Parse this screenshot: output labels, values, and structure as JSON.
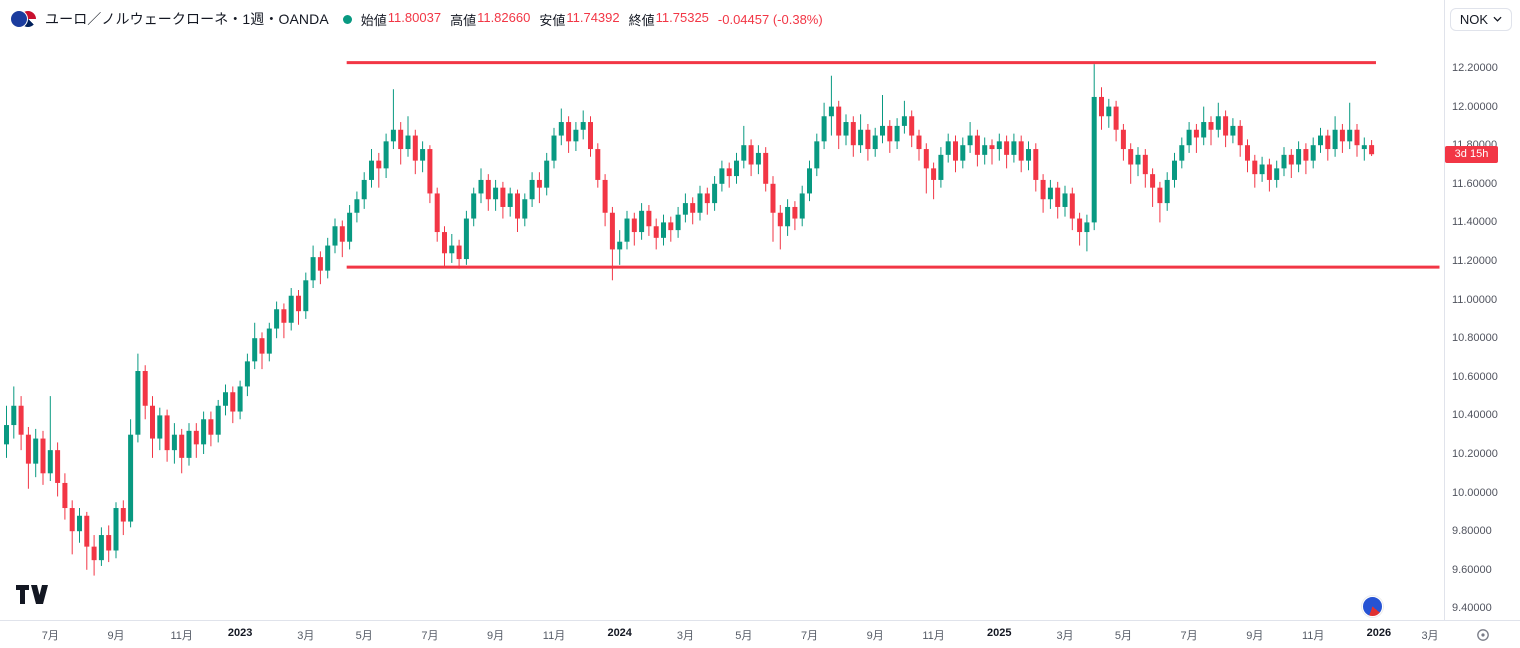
{
  "toolbar": {
    "symbol_title": "ユーロ／ノルウェークローネ・1週・OANDA",
    "ohlc": {
      "open_label": "始値",
      "open": "11.80037",
      "high_label": "高値",
      "high": "11.82660",
      "low_label": "安値",
      "low": "11.74392",
      "close_label": "終値",
      "close": "11.75325",
      "change": "-0.04457 (-0.38%)"
    },
    "currency_button": "NOK"
  },
  "icons": {
    "chevron_down": "chevron-down-icon",
    "tradingview_logo": "tradingview-logo",
    "symbol_marker": "symbol-marker-icon",
    "axis_settings": "axis-settings-icon"
  },
  "chart_data": {
    "type": "candlestick",
    "title": "ユーロ／ノルウェークローネ・1週・OANDA",
    "interval_note": "weekly candles, late May 2022 - late Dec 2025",
    "countdown_label": "3d 15h",
    "last_price": 11.75325,
    "ylim": [
      9.34,
      12.55
    ],
    "grid": false,
    "colors": {
      "up": "#089981",
      "down": "#f23645",
      "trend": "#f23645"
    },
    "y_axis_ticks": [
      "12.20000",
      "12.00000",
      "11.80000",
      "11.60000",
      "11.40000",
      "11.20000",
      "11.00000",
      "10.80000",
      "10.60000",
      "10.40000",
      "10.20000",
      "10.00000",
      "9.80000",
      "9.60000",
      "9.40000"
    ],
    "x_ticks": [
      {
        "i": 6,
        "label": "7月"
      },
      {
        "i": 15,
        "label": "9月"
      },
      {
        "i": 24,
        "label": "11月"
      },
      {
        "i": 32,
        "label": "2023",
        "year": true
      },
      {
        "i": 41,
        "label": "3月"
      },
      {
        "i": 49,
        "label": "5月"
      },
      {
        "i": 58,
        "label": "7月"
      },
      {
        "i": 67,
        "label": "9月"
      },
      {
        "i": 75,
        "label": "11月"
      },
      {
        "i": 84,
        "label": "2024",
        "year": true
      },
      {
        "i": 93,
        "label": "3月"
      },
      {
        "i": 101,
        "label": "5月"
      },
      {
        "i": 110,
        "label": "7月"
      },
      {
        "i": 119,
        "label": "9月"
      },
      {
        "i": 127,
        "label": "11月"
      },
      {
        "i": 136,
        "label": "2025",
        "year": true
      },
      {
        "i": 145,
        "label": "3月"
      },
      {
        "i": 153,
        "label": "5月"
      },
      {
        "i": 162,
        "label": "7月"
      },
      {
        "i": 171,
        "label": "9月"
      },
      {
        "i": 179,
        "label": "11月"
      },
      {
        "i": 188,
        "label": "2026",
        "year": true
      },
      {
        "i": 195,
        "label": "3月"
      }
    ],
    "trend_lines": [
      {
        "price": 12.228,
        "start_i": 46.6,
        "end_i": 187.6,
        "color": "#f23645",
        "width": 3
      },
      {
        "price": 11.168,
        "start_i": 46.6,
        "end_i": 196.3,
        "color": "#f23645",
        "width": 3
      }
    ],
    "candles": [
      [
        10.25,
        10.45,
        10.18,
        10.35
      ],
      [
        10.35,
        10.55,
        10.28,
        10.45
      ],
      [
        10.45,
        10.5,
        10.22,
        10.3
      ],
      [
        10.3,
        10.34,
        10.02,
        10.15
      ],
      [
        10.15,
        10.33,
        10.08,
        10.28
      ],
      [
        10.28,
        10.32,
        10.04,
        10.1
      ],
      [
        10.1,
        10.5,
        10.06,
        10.22
      ],
      [
        10.22,
        10.26,
        9.98,
        10.05
      ],
      [
        10.05,
        10.1,
        9.86,
        9.92
      ],
      [
        9.92,
        9.96,
        9.68,
        9.8
      ],
      [
        9.8,
        9.92,
        9.74,
        9.88
      ],
      [
        9.88,
        9.9,
        9.6,
        9.72
      ],
      [
        9.72,
        9.78,
        9.57,
        9.65
      ],
      [
        9.65,
        9.82,
        9.62,
        9.78
      ],
      [
        9.78,
        9.83,
        9.64,
        9.7
      ],
      [
        9.7,
        9.95,
        9.66,
        9.92
      ],
      [
        9.92,
        9.96,
        9.78,
        9.85
      ],
      [
        9.85,
        10.38,
        9.82,
        10.3
      ],
      [
        10.3,
        10.72,
        10.26,
        10.63
      ],
      [
        10.63,
        10.66,
        10.38,
        10.45
      ],
      [
        10.45,
        10.5,
        10.18,
        10.28
      ],
      [
        10.28,
        10.44,
        10.22,
        10.4
      ],
      [
        10.4,
        10.43,
        10.16,
        10.22
      ],
      [
        10.22,
        10.36,
        10.15,
        10.3
      ],
      [
        10.3,
        10.33,
        10.1,
        10.18
      ],
      [
        10.18,
        10.36,
        10.14,
        10.32
      ],
      [
        10.32,
        10.36,
        10.18,
        10.25
      ],
      [
        10.25,
        10.42,
        10.2,
        10.38
      ],
      [
        10.38,
        10.42,
        10.24,
        10.3
      ],
      [
        10.3,
        10.48,
        10.26,
        10.45
      ],
      [
        10.45,
        10.56,
        10.4,
        10.52
      ],
      [
        10.52,
        10.55,
        10.36,
        10.42
      ],
      [
        10.42,
        10.58,
        10.38,
        10.55
      ],
      [
        10.55,
        10.72,
        10.5,
        10.68
      ],
      [
        10.68,
        10.88,
        10.64,
        10.8
      ],
      [
        10.8,
        10.83,
        10.64,
        10.72
      ],
      [
        10.72,
        10.88,
        10.68,
        10.85
      ],
      [
        10.85,
        10.99,
        10.8,
        10.95
      ],
      [
        10.95,
        10.98,
        10.8,
        10.88
      ],
      [
        10.88,
        11.06,
        10.84,
        11.02
      ],
      [
        11.02,
        11.05,
        10.87,
        10.94
      ],
      [
        10.94,
        11.14,
        10.9,
        11.1
      ],
      [
        11.1,
        11.28,
        11.06,
        11.22
      ],
      [
        11.22,
        11.25,
        11.08,
        11.15
      ],
      [
        11.15,
        11.32,
        11.11,
        11.28
      ],
      [
        11.28,
        11.42,
        11.24,
        11.38
      ],
      [
        11.38,
        11.41,
        11.22,
        11.3
      ],
      [
        11.3,
        11.49,
        11.26,
        11.45
      ],
      [
        11.45,
        11.56,
        11.4,
        11.52
      ],
      [
        11.52,
        11.66,
        11.47,
        11.62
      ],
      [
        11.62,
        11.78,
        11.58,
        11.72
      ],
      [
        11.72,
        11.76,
        11.58,
        11.68
      ],
      [
        11.68,
        11.86,
        11.63,
        11.82
      ],
      [
        11.82,
        12.09,
        11.78,
        11.88
      ],
      [
        11.88,
        11.92,
        11.7,
        11.78
      ],
      [
        11.78,
        11.95,
        11.74,
        11.85
      ],
      [
        11.85,
        11.88,
        11.65,
        11.72
      ],
      [
        11.72,
        11.82,
        11.66,
        11.78
      ],
      [
        11.78,
        11.8,
        11.5,
        11.55
      ],
      [
        11.55,
        11.58,
        11.3,
        11.35
      ],
      [
        11.35,
        11.38,
        11.17,
        11.24
      ],
      [
        11.24,
        11.34,
        11.19,
        11.28
      ],
      [
        11.28,
        11.31,
        11.16,
        11.21
      ],
      [
        11.21,
        11.46,
        11.18,
        11.42
      ],
      [
        11.42,
        11.58,
        11.38,
        11.55
      ],
      [
        11.55,
        11.68,
        11.5,
        11.62
      ],
      [
        11.62,
        11.65,
        11.46,
        11.52
      ],
      [
        11.52,
        11.62,
        11.46,
        11.58
      ],
      [
        11.58,
        11.61,
        11.42,
        11.48
      ],
      [
        11.48,
        11.58,
        11.43,
        11.55
      ],
      [
        11.55,
        11.57,
        11.35,
        11.42
      ],
      [
        11.42,
        11.55,
        11.38,
        11.52
      ],
      [
        11.52,
        11.66,
        11.48,
        11.62
      ],
      [
        11.62,
        11.66,
        11.5,
        11.58
      ],
      [
        11.58,
        11.76,
        11.54,
        11.72
      ],
      [
        11.72,
        11.89,
        11.68,
        11.85
      ],
      [
        11.85,
        11.99,
        11.8,
        11.92
      ],
      [
        11.92,
        11.95,
        11.76,
        11.82
      ],
      [
        11.82,
        11.92,
        11.77,
        11.88
      ],
      [
        11.88,
        11.98,
        11.83,
        11.92
      ],
      [
        11.92,
        11.95,
        11.74,
        11.78
      ],
      [
        11.78,
        11.81,
        11.58,
        11.62
      ],
      [
        11.62,
        11.65,
        11.38,
        11.45
      ],
      [
        11.45,
        11.48,
        11.1,
        11.26
      ],
      [
        11.26,
        11.36,
        11.18,
        11.3
      ],
      [
        11.3,
        11.46,
        11.26,
        11.42
      ],
      [
        11.42,
        11.45,
        11.28,
        11.35
      ],
      [
        11.35,
        11.5,
        11.31,
        11.46
      ],
      [
        11.46,
        11.49,
        11.33,
        11.38
      ],
      [
        11.38,
        11.42,
        11.26,
        11.32
      ],
      [
        11.32,
        11.44,
        11.28,
        11.4
      ],
      [
        11.4,
        11.43,
        11.3,
        11.36
      ],
      [
        11.36,
        11.48,
        11.32,
        11.44
      ],
      [
        11.44,
        11.55,
        11.4,
        11.5
      ],
      [
        11.5,
        11.53,
        11.39,
        11.45
      ],
      [
        11.45,
        11.59,
        11.41,
        11.55
      ],
      [
        11.55,
        11.58,
        11.44,
        11.5
      ],
      [
        11.5,
        11.64,
        11.46,
        11.6
      ],
      [
        11.6,
        11.72,
        11.56,
        11.68
      ],
      [
        11.68,
        11.71,
        11.58,
        11.64
      ],
      [
        11.64,
        11.76,
        11.6,
        11.72
      ],
      [
        11.72,
        11.9,
        11.68,
        11.8
      ],
      [
        11.8,
        11.83,
        11.64,
        11.7
      ],
      [
        11.7,
        11.8,
        11.65,
        11.76
      ],
      [
        11.76,
        11.79,
        11.56,
        11.6
      ],
      [
        11.6,
        11.64,
        11.3,
        11.45
      ],
      [
        11.45,
        11.49,
        11.26,
        11.38
      ],
      [
        11.38,
        11.52,
        11.33,
        11.48
      ],
      [
        11.48,
        11.51,
        11.36,
        11.42
      ],
      [
        11.42,
        11.59,
        11.38,
        11.55
      ],
      [
        11.55,
        11.72,
        11.51,
        11.68
      ],
      [
        11.68,
        11.86,
        11.64,
        11.82
      ],
      [
        11.82,
        12.02,
        11.78,
        11.95
      ],
      [
        11.95,
        12.16,
        11.85,
        12.0
      ],
      [
        12.0,
        12.03,
        11.78,
        11.85
      ],
      [
        11.85,
        11.96,
        11.8,
        11.92
      ],
      [
        11.92,
        11.95,
        11.74,
        11.8
      ],
      [
        11.8,
        11.96,
        11.76,
        11.88
      ],
      [
        11.88,
        11.91,
        11.72,
        11.78
      ],
      [
        11.78,
        11.89,
        11.74,
        11.85
      ],
      [
        11.85,
        12.06,
        11.81,
        11.9
      ],
      [
        11.9,
        11.93,
        11.76,
        11.82
      ],
      [
        11.82,
        11.94,
        11.78,
        11.9
      ],
      [
        11.9,
        12.03,
        11.86,
        11.95
      ],
      [
        11.95,
        11.98,
        11.79,
        11.85
      ],
      [
        11.85,
        11.88,
        11.72,
        11.78
      ],
      [
        11.78,
        11.81,
        11.55,
        11.68
      ],
      [
        11.68,
        11.71,
        11.52,
        11.62
      ],
      [
        11.62,
        11.79,
        11.58,
        11.75
      ],
      [
        11.75,
        11.86,
        11.71,
        11.82
      ],
      [
        11.82,
        11.85,
        11.66,
        11.72
      ],
      [
        11.72,
        11.84,
        11.68,
        11.8
      ],
      [
        11.8,
        11.92,
        11.76,
        11.85
      ],
      [
        11.85,
        11.88,
        11.69,
        11.75
      ],
      [
        11.75,
        11.84,
        11.7,
        11.8
      ],
      [
        11.8,
        11.83,
        11.7,
        11.78
      ],
      [
        11.78,
        11.86,
        11.72,
        11.82
      ],
      [
        11.82,
        11.85,
        11.68,
        11.75
      ],
      [
        11.75,
        11.86,
        11.71,
        11.82
      ],
      [
        11.82,
        11.85,
        11.66,
        11.72
      ],
      [
        11.72,
        11.82,
        11.67,
        11.78
      ],
      [
        11.78,
        11.81,
        11.56,
        11.62
      ],
      [
        11.62,
        11.65,
        11.45,
        11.52
      ],
      [
        11.52,
        11.62,
        11.47,
        11.58
      ],
      [
        11.58,
        11.61,
        11.42,
        11.48
      ],
      [
        11.48,
        11.59,
        11.43,
        11.55
      ],
      [
        11.55,
        11.58,
        11.36,
        11.42
      ],
      [
        11.42,
        11.45,
        11.28,
        11.35
      ],
      [
        11.35,
        11.44,
        11.25,
        11.4
      ],
      [
        11.4,
        12.22,
        11.36,
        12.05
      ],
      [
        12.05,
        12.1,
        11.88,
        11.95
      ],
      [
        11.95,
        12.04,
        11.89,
        12.0
      ],
      [
        12.0,
        12.03,
        11.82,
        11.88
      ],
      [
        11.88,
        11.91,
        11.72,
        11.78
      ],
      [
        11.78,
        11.81,
        11.6,
        11.7
      ],
      [
        11.7,
        11.79,
        11.64,
        11.75
      ],
      [
        11.75,
        11.78,
        11.58,
        11.65
      ],
      [
        11.65,
        11.68,
        11.48,
        11.58
      ],
      [
        11.58,
        11.61,
        11.4,
        11.5
      ],
      [
        11.5,
        11.66,
        11.46,
        11.62
      ],
      [
        11.62,
        11.76,
        11.58,
        11.72
      ],
      [
        11.72,
        11.84,
        11.68,
        11.8
      ],
      [
        11.8,
        11.92,
        11.76,
        11.88
      ],
      [
        11.88,
        11.91,
        11.76,
        11.84
      ],
      [
        11.84,
        12.0,
        11.8,
        11.92
      ],
      [
        11.92,
        11.95,
        11.8,
        11.88
      ],
      [
        11.88,
        12.02,
        11.84,
        11.95
      ],
      [
        11.95,
        11.98,
        11.79,
        11.85
      ],
      [
        11.85,
        11.94,
        11.81,
        11.9
      ],
      [
        11.9,
        11.93,
        11.74,
        11.8
      ],
      [
        11.8,
        11.83,
        11.66,
        11.72
      ],
      [
        11.72,
        11.75,
        11.58,
        11.65
      ],
      [
        11.65,
        11.74,
        11.61,
        11.7
      ],
      [
        11.7,
        11.73,
        11.56,
        11.62
      ],
      [
        11.62,
        11.72,
        11.58,
        11.68
      ],
      [
        11.68,
        11.79,
        11.64,
        11.75
      ],
      [
        11.75,
        11.78,
        11.63,
        11.7
      ],
      [
        11.7,
        11.82,
        11.66,
        11.78
      ],
      [
        11.78,
        11.81,
        11.65,
        11.72
      ],
      [
        11.72,
        11.84,
        11.68,
        11.8
      ],
      [
        11.8,
        11.89,
        11.76,
        11.85
      ],
      [
        11.85,
        11.88,
        11.72,
        11.78
      ],
      [
        11.78,
        11.95,
        11.74,
        11.88
      ],
      [
        11.88,
        11.91,
        11.76,
        11.82
      ],
      [
        11.82,
        12.02,
        11.78,
        11.88
      ],
      [
        11.88,
        11.91,
        11.74,
        11.8
      ],
      [
        11.78,
        11.84,
        11.72,
        11.8
      ],
      [
        11.80037,
        11.8266,
        11.74392,
        11.75325
      ]
    ]
  }
}
